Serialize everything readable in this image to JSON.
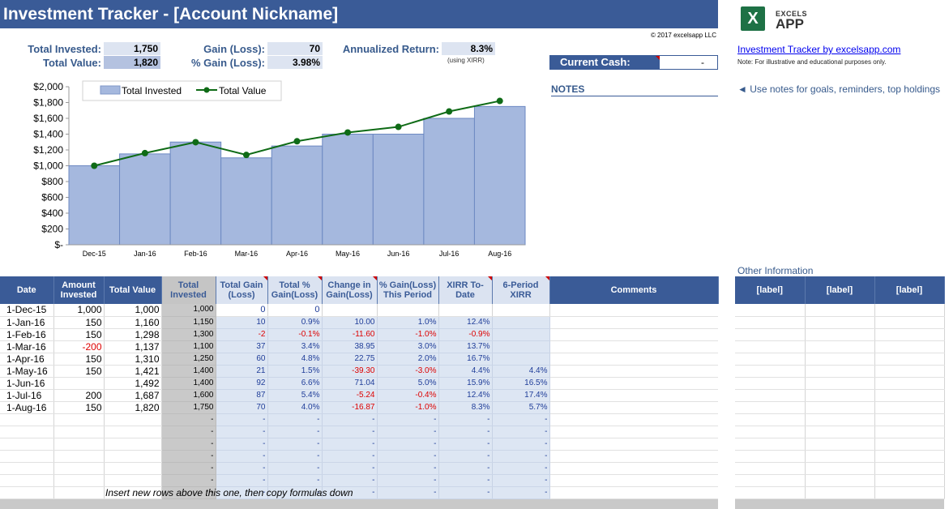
{
  "header": {
    "title": "Investment Tracker - [Account Nickname]",
    "copyright": "© 2017 excelsapp LLC"
  },
  "summary": {
    "total_invested_label": "Total Invested:",
    "total_invested_value": "1,750",
    "total_value_label": "Total Value:",
    "total_value_value": "1,820",
    "gain_label": "Gain (Loss):",
    "gain_value": "70",
    "pct_gain_label": "% Gain (Loss):",
    "pct_gain_value": "3.98%",
    "annualized_label": "Annualized Return:",
    "annualized_value": "8.3%",
    "annualized_note": "(using XIRR)"
  },
  "brand": {
    "logo_letter": "X",
    "logo_top": "EXCELS",
    "logo_bottom": "APP",
    "link_text": "Investment Tracker by excelsapp.com",
    "note": "Note: For illustrative and educational purposes only."
  },
  "cash": {
    "label": "Current Cash:",
    "value": "-"
  },
  "notes": {
    "heading": "NOTES",
    "hint": "◄ Use notes for goals, reminders, top holdings"
  },
  "chart_data": {
    "type": "bar",
    "categories": [
      "Dec-15",
      "Jan-16",
      "Feb-16",
      "Mar-16",
      "Apr-16",
      "May-16",
      "Jun-16",
      "Jul-16",
      "Aug-16"
    ],
    "series": [
      {
        "name": "Total Invested",
        "type": "bar",
        "values": [
          1000,
          1150,
          1300,
          1100,
          1250,
          1400,
          1400,
          1600,
          1750
        ],
        "color": "#a5b8de"
      },
      {
        "name": "Total Value",
        "type": "line",
        "values": [
          1000,
          1160,
          1298,
          1137,
          1310,
          1421,
          1492,
          1687,
          1820
        ],
        "color": "#0f6b16"
      }
    ],
    "y_ticks": [
      "$-",
      "$200",
      "$400",
      "$600",
      "$800",
      "$1,000",
      "$1,200",
      "$1,400",
      "$1,600",
      "$1,800",
      "$2,000"
    ],
    "ylim": [
      0,
      2000
    ],
    "legend_position": "top-left",
    "grid": false
  },
  "table": {
    "headers": [
      "Date",
      "Amount Invested",
      "Total Value",
      "Total Invested",
      "Total Gain (Loss)",
      "Total % Gain(Loss)",
      "Change in Gain(Loss)",
      "% Gain(Loss) This Period",
      "XIRR To-Date",
      "6-Period XIRR",
      "Comments"
    ],
    "rows": [
      [
        "1-Dec-15",
        "1,000",
        "1,000",
        "1,000",
        "0",
        "0",
        "",
        "",
        "",
        "",
        ""
      ],
      [
        "1-Jan-16",
        "150",
        "1,160",
        "1,150",
        "10",
        "0.9%",
        "10.00",
        "1.0%",
        "12.4%",
        "",
        ""
      ],
      [
        "1-Feb-16",
        "150",
        "1,298",
        "1,300",
        "-2",
        "-0.1%",
        "-11.60",
        "-1.0%",
        "-0.9%",
        "",
        ""
      ],
      [
        "1-Mar-16",
        "-200",
        "1,137",
        "1,100",
        "37",
        "3.4%",
        "38.95",
        "3.0%",
        "13.7%",
        "",
        ""
      ],
      [
        "1-Apr-16",
        "150",
        "1,310",
        "1,250",
        "60",
        "4.8%",
        "22.75",
        "2.0%",
        "16.7%",
        "",
        ""
      ],
      [
        "1-May-16",
        "150",
        "1,421",
        "1,400",
        "21",
        "1.5%",
        "-39.30",
        "-3.0%",
        "4.4%",
        "4.4%",
        ""
      ],
      [
        "1-Jun-16",
        "",
        "1,492",
        "1,400",
        "92",
        "6.6%",
        "71.04",
        "5.0%",
        "15.9%",
        "16.5%",
        ""
      ],
      [
        "1-Jul-16",
        "200",
        "1,687",
        "1,600",
        "87",
        "5.4%",
        "-5.24",
        "-0.4%",
        "12.4%",
        "17.4%",
        ""
      ],
      [
        "1-Aug-16",
        "150",
        "1,820",
        "1,750",
        "70",
        "4.0%",
        "-16.87",
        "-1.0%",
        "8.3%",
        "5.7%",
        ""
      ],
      [
        "",
        "",
        "",
        "-",
        "-",
        "-",
        "-",
        "-",
        "-",
        "-",
        ""
      ],
      [
        "",
        "",
        "",
        "-",
        "-",
        "-",
        "-",
        "-",
        "-",
        "-",
        ""
      ],
      [
        "",
        "",
        "",
        "-",
        "-",
        "-",
        "-",
        "-",
        "-",
        "-",
        ""
      ],
      [
        "",
        "",
        "",
        "-",
        "-",
        "-",
        "-",
        "-",
        "-",
        "-",
        ""
      ],
      [
        "",
        "",
        "",
        "-",
        "-",
        "-",
        "-",
        "-",
        "-",
        "-",
        ""
      ],
      [
        "",
        "",
        "",
        "-",
        "-",
        "-",
        "-",
        "-",
        "-",
        "-",
        ""
      ],
      [
        "",
        "",
        "",
        "-",
        "-",
        "-",
        "-",
        "-",
        "-",
        "-",
        ""
      ]
    ],
    "footer_note": "Insert new rows above this one, then copy formulas down"
  },
  "other": {
    "heading": "Other Information",
    "headers": [
      "[label]",
      "[label]",
      "[label]"
    ]
  }
}
